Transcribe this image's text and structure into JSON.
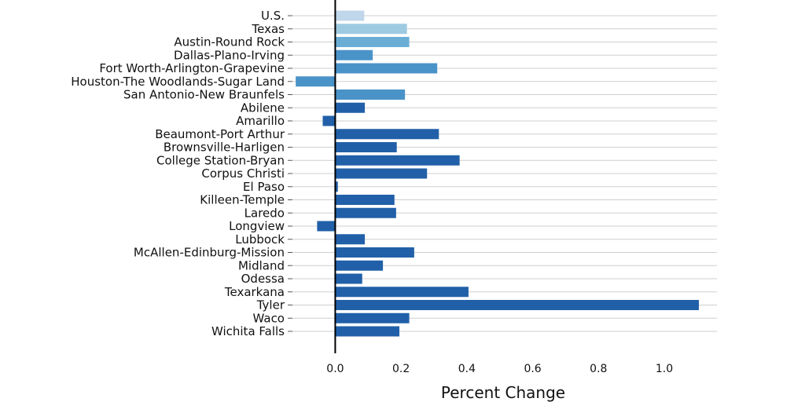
{
  "chart_data": {
    "type": "bar",
    "orientation": "horizontal",
    "title": "",
    "xlabel": "Percent Change",
    "ylabel": "",
    "xlim": [
      -0.13,
      1.16
    ],
    "xticks": [
      0.0,
      0.2,
      0.4,
      0.6,
      0.8,
      1.0
    ],
    "xtick_labels": [
      "0.0",
      "0.2",
      "0.4",
      "0.6",
      "0.8",
      "1.0"
    ],
    "grid": "horizontal",
    "categories": [
      "U.S.",
      "Texas",
      "Austin-Round Rock",
      "Dallas-Plano-Irving",
      "Fort Worth-Arlington-Grapevine",
      "Houston-The Woodlands-Sugar Land",
      "San Antonio-New Braunfels",
      "Abilene",
      "Amarillo",
      "Beaumont-Port Arthur",
      "Brownsville-Harligen",
      "College Station-Bryan",
      "Corpus Christi",
      "El Paso",
      "Killeen-Temple",
      "Laredo",
      "Longview",
      "Lubbock",
      "McAllen-Edinburg-Mission",
      "Midland",
      "Odessa",
      "Texarkana",
      "Tyler",
      "Waco",
      "Wichita Falls"
    ],
    "values": [
      0.088,
      0.218,
      0.225,
      0.114,
      0.31,
      -0.12,
      0.212,
      0.09,
      -0.038,
      0.315,
      0.187,
      0.378,
      0.279,
      0.008,
      0.18,
      0.185,
      -0.055,
      0.09,
      0.24,
      0.145,
      0.082,
      0.405,
      1.105,
      0.225,
      0.195
    ],
    "colors": [
      "#c0d6ea",
      "#9ecae1",
      "#6aaed6",
      "#4a93c8",
      "#4a93c8",
      "#4a93c8",
      "#4a93c8",
      "#2160a8",
      "#2160a8",
      "#2160a8",
      "#2160a8",
      "#2160a8",
      "#2160a8",
      "#2160a8",
      "#2160a8",
      "#2160a8",
      "#2160a8",
      "#2160a8",
      "#2160a8",
      "#2160a8",
      "#2160a8",
      "#2160a8",
      "#2160a8",
      "#2160a8",
      "#2160a8"
    ]
  }
}
